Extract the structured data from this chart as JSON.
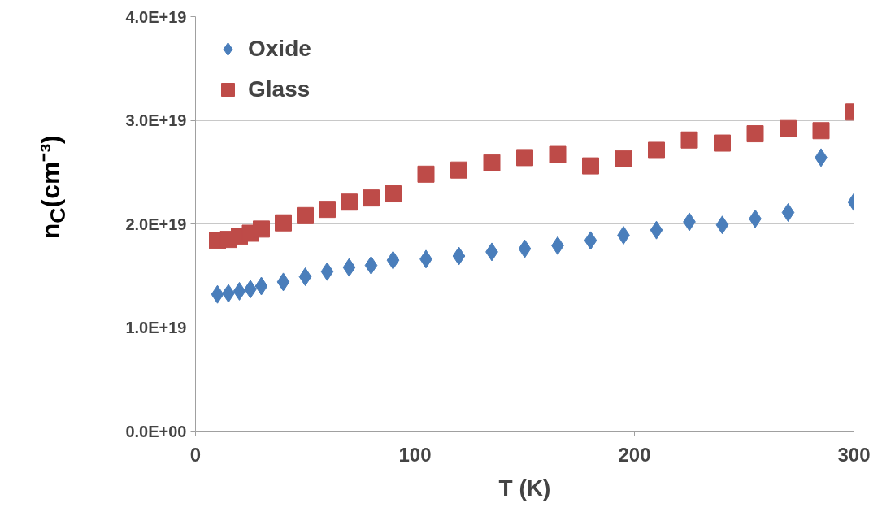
{
  "chart_data": {
    "type": "scatter",
    "xlabel": "T (K)",
    "ylabel": "n$_{C}$(cm⁻³)",
    "x": [
      10,
      15,
      20,
      25,
      30,
      40,
      50,
      60,
      70,
      80,
      90,
      105,
      120,
      135,
      150,
      165,
      180,
      195,
      210,
      225,
      240,
      255,
      270,
      285,
      300
    ],
    "series": [
      {
        "name": "Oxide",
        "color": "#4a7ebb",
        "marker": "diamond",
        "values": [
          1.32e+19,
          1.33e+19,
          1.35e+19,
          1.37e+19,
          1.4e+19,
          1.44e+19,
          1.49e+19,
          1.54e+19,
          1.58e+19,
          1.6e+19,
          1.65e+19,
          1.66e+19,
          1.69e+19,
          1.73e+19,
          1.76e+19,
          1.79e+19,
          1.84e+19,
          1.89e+19,
          1.94e+19,
          2.02e+19,
          1.99e+19,
          2.05e+19,
          2.11e+19,
          2.64e+19,
          2.21e+19
        ]
      },
      {
        "name": "Glass",
        "color": "#be4b48",
        "marker": "square",
        "values": [
          1.84e+19,
          1.85e+19,
          1.88e+19,
          1.91e+19,
          1.95e+19,
          2.01e+19,
          2.08e+19,
          2.14e+19,
          2.21e+19,
          2.25e+19,
          2.29e+19,
          2.48e+19,
          2.52e+19,
          2.59e+19,
          2.64e+19,
          2.67e+19,
          2.56e+19,
          2.63e+19,
          2.71e+19,
          2.81e+19,
          2.78e+19,
          2.87e+19,
          2.92e+19,
          2.9e+19,
          3.08e+19
        ]
      }
    ],
    "xlim": [
      0,
      300
    ],
    "xticks": [
      0,
      100,
      200,
      300
    ],
    "ylim": [
      0,
      4e+19
    ],
    "yticks": [
      {
        "value": 0,
        "label": "0.0E+00"
      },
      {
        "value": 1e+19,
        "label": "1.0E+19"
      },
      {
        "value": 2e+19,
        "label": "2.0E+19"
      },
      {
        "value": 3e+19,
        "label": "3.0E+19"
      },
      {
        "value": 4e+19,
        "label": "4.0E+19"
      }
    ],
    "grid": "y",
    "legend": "top left"
  }
}
